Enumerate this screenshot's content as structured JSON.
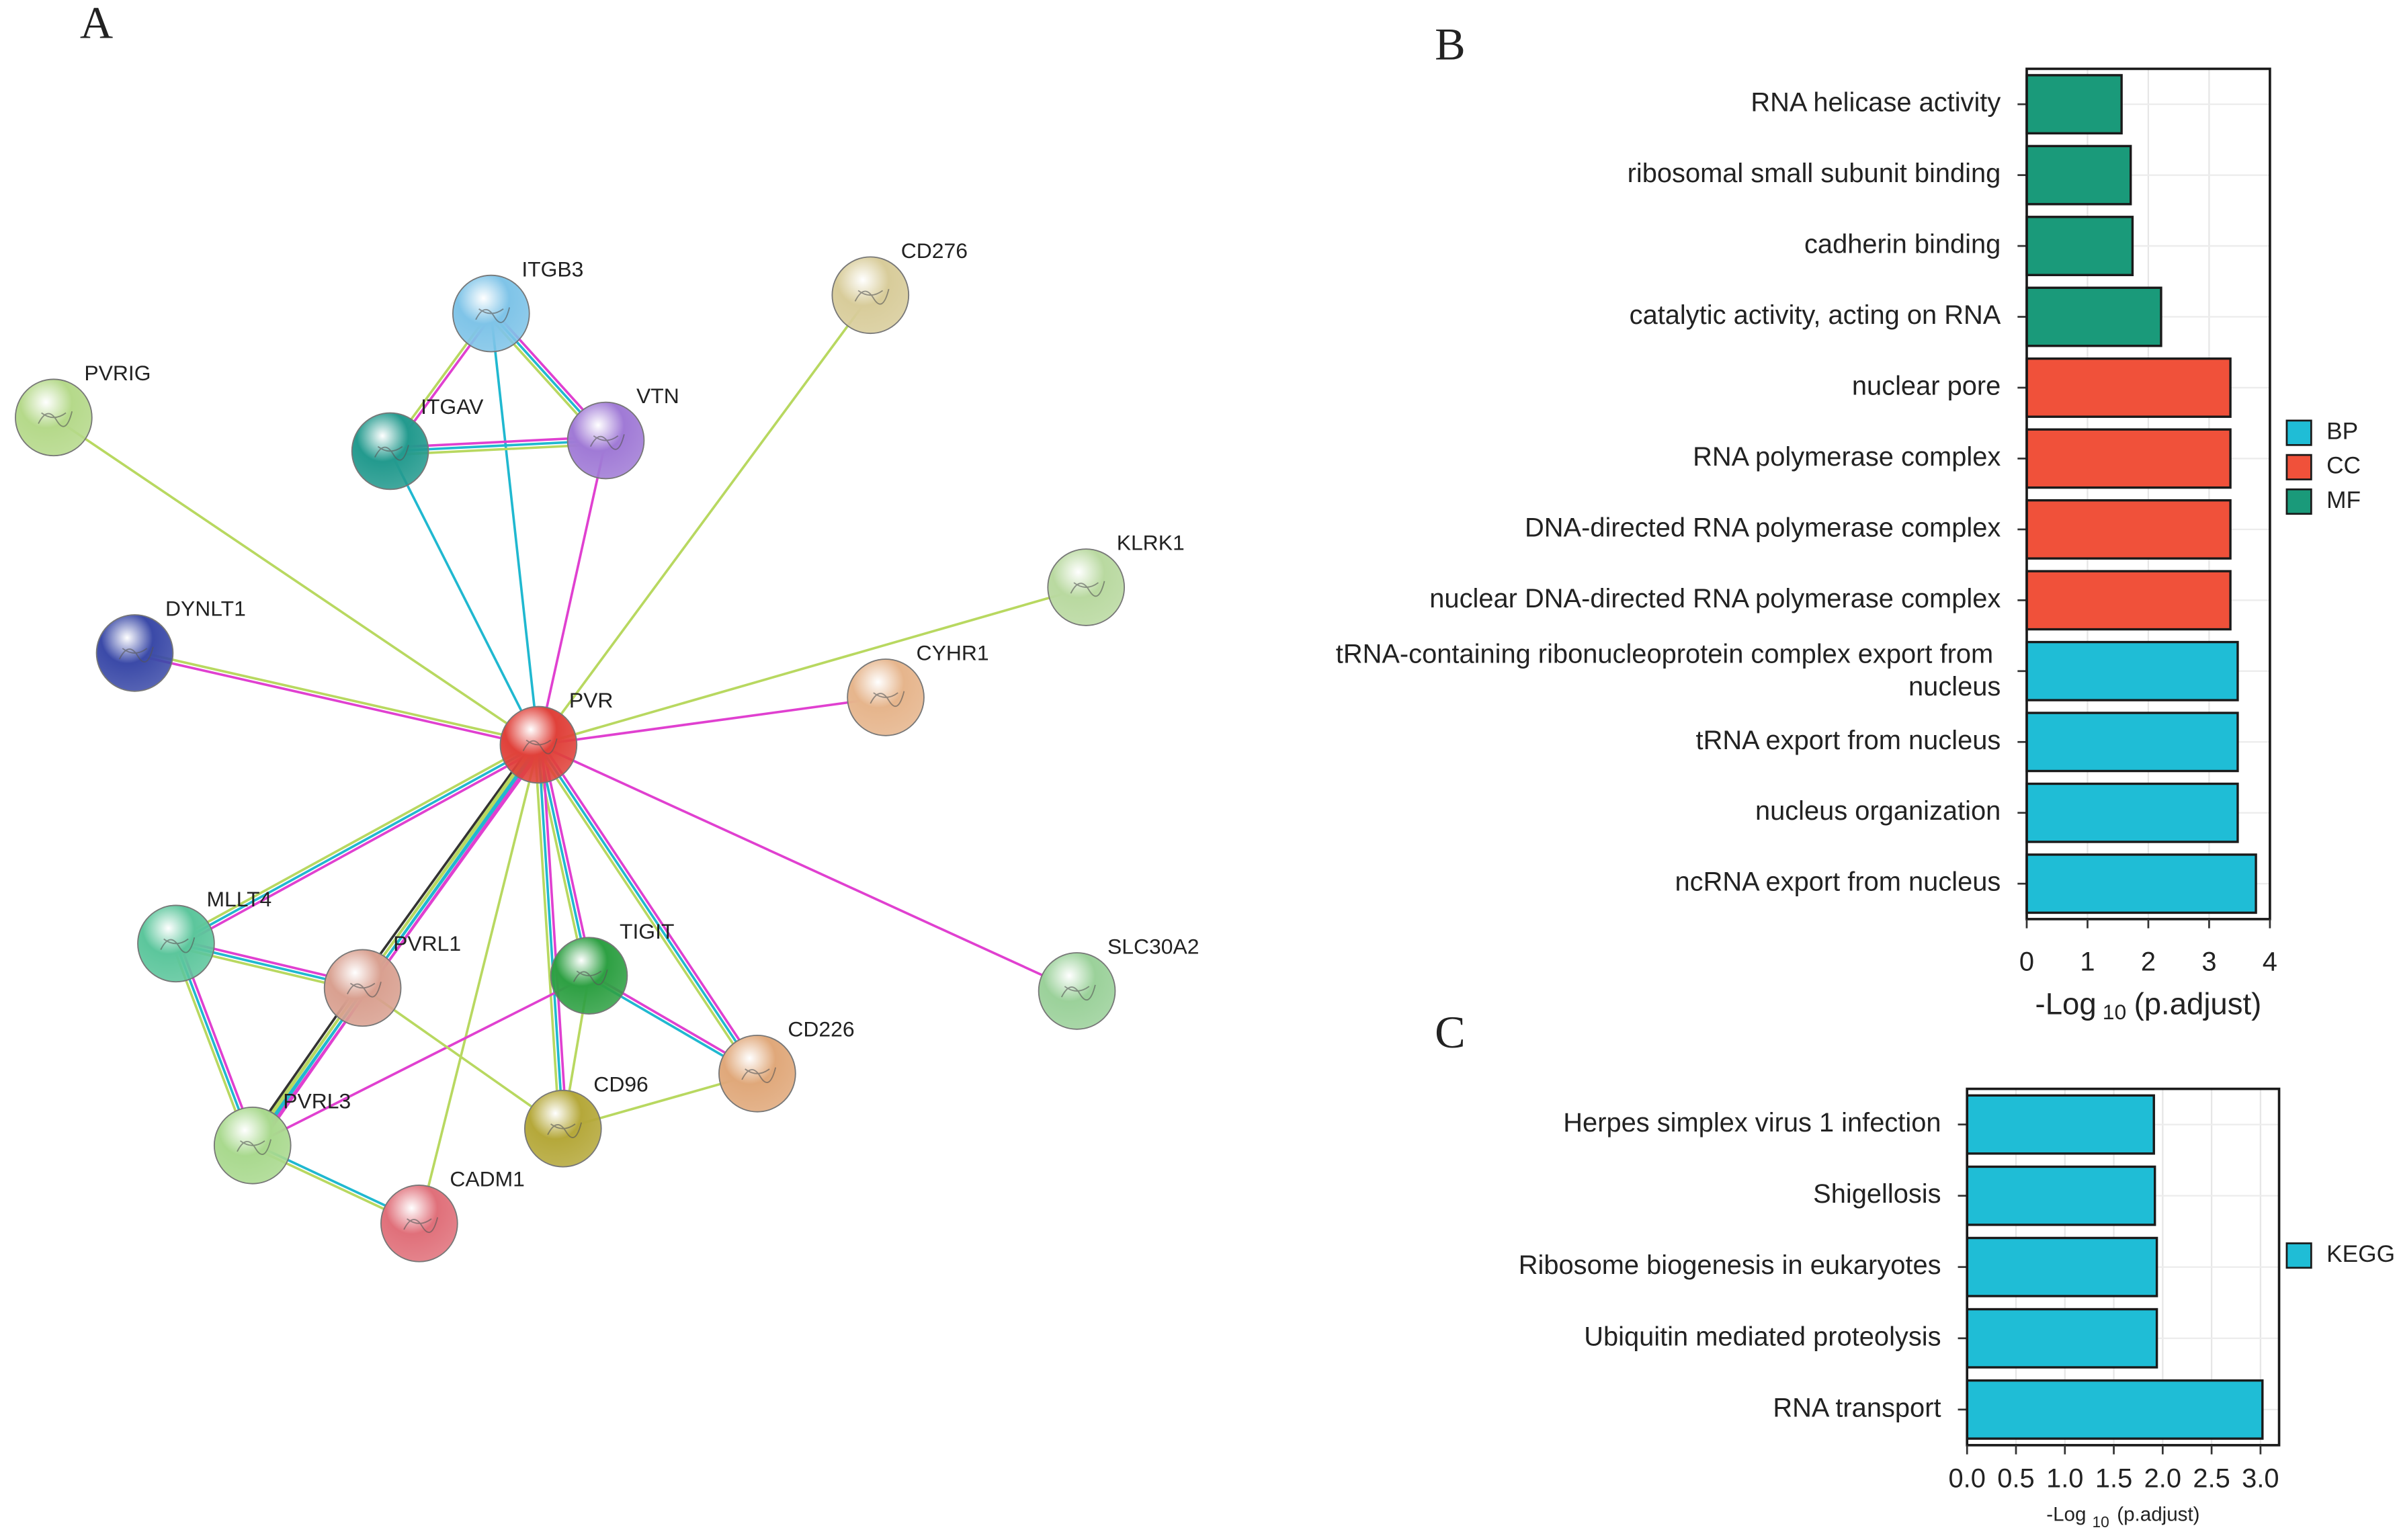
{
  "chart_data": [
    {
      "type": "network",
      "panel": "A",
      "nodes": [
        {
          "label": "PVR",
          "color": "#e0413a"
        },
        {
          "label": "ITGB3",
          "color": "#7fc4e8"
        },
        {
          "label": "ITGAV",
          "color": "#239a8e"
        },
        {
          "label": "VTN",
          "color": "#a07ad6"
        },
        {
          "label": "CD276",
          "color": "#d8cc9a"
        },
        {
          "label": "PVRIG",
          "color": "#b5d98a"
        },
        {
          "label": "DYNLT1",
          "color": "#3b4aa8"
        },
        {
          "label": "KLRK1",
          "color": "#b9d9a0"
        },
        {
          "label": "CYHR1",
          "color": "#e6b58c"
        },
        {
          "label": "SLC30A2",
          "color": "#9bd19a"
        },
        {
          "label": "MLLT4",
          "color": "#5cc69c"
        },
        {
          "label": "PVRL1",
          "color": "#d9a090"
        },
        {
          "label": "TIGIT",
          "color": "#2ea043"
        },
        {
          "label": "CD226",
          "color": "#e0a87a"
        },
        {
          "label": "PVRL3",
          "color": "#a9d98e"
        },
        {
          "label": "CD96",
          "color": "#b5a83a"
        },
        {
          "label": "CADM1",
          "color": "#e0707a"
        }
      ],
      "edges": [
        {
          "source": 0,
          "target": 1,
          "colors": [
            "#20b8d0"
          ]
        },
        {
          "source": 0,
          "target": 2,
          "colors": [
            "#20b8d0"
          ]
        },
        {
          "source": 0,
          "target": 3,
          "colors": [
            "#e040d0"
          ]
        },
        {
          "source": 0,
          "target": 4,
          "colors": [
            "#b8d860"
          ]
        },
        {
          "source": 0,
          "target": 5,
          "colors": [
            "#b8d860"
          ]
        },
        {
          "source": 0,
          "target": 6,
          "colors": [
            "#e040d0",
            "#b8d860"
          ]
        },
        {
          "source": 0,
          "target": 7,
          "colors": [
            "#b8d860"
          ]
        },
        {
          "source": 0,
          "target": 8,
          "colors": [
            "#e040d0"
          ]
        },
        {
          "source": 0,
          "target": 9,
          "colors": [
            "#e040d0"
          ]
        },
        {
          "source": 0,
          "target": 10,
          "colors": [
            "#e040d0",
            "#20b8d0",
            "#b8d860"
          ]
        },
        {
          "source": 0,
          "target": 11,
          "colors": [
            "#e040d0",
            "#20b8d0",
            "#b8d860",
            "#333333"
          ]
        },
        {
          "source": 0,
          "target": 12,
          "colors": [
            "#e040d0",
            "#20b8d0",
            "#b8d860"
          ]
        },
        {
          "source": 0,
          "target": 13,
          "colors": [
            "#e040d0",
            "#20b8d0",
            "#b8d860"
          ]
        },
        {
          "source": 0,
          "target": 14,
          "colors": [
            "#e040d0",
            "#20b8d0",
            "#b8d860"
          ]
        },
        {
          "source": 0,
          "target": 15,
          "colors": [
            "#e040d0",
            "#20b8d0",
            "#b8d860"
          ]
        },
        {
          "source": 0,
          "target": 16,
          "colors": [
            "#b8d860"
          ]
        },
        {
          "source": 1,
          "target": 2,
          "colors": [
            "#e040d0",
            "#b8d860"
          ]
        },
        {
          "source": 1,
          "target": 3,
          "colors": [
            "#e040d0",
            "#20b8d0",
            "#b8d860"
          ]
        },
        {
          "source": 2,
          "target": 3,
          "colors": [
            "#e040d0",
            "#20b8d0",
            "#b8d860"
          ]
        },
        {
          "source": 10,
          "target": 11,
          "colors": [
            "#e040d0",
            "#20b8d0",
            "#b8d860"
          ]
        },
        {
          "source": 10,
          "target": 14,
          "colors": [
            "#e040d0",
            "#20b8d0",
            "#b8d860"
          ]
        },
        {
          "source": 11,
          "target": 14,
          "colors": [
            "#e040d0",
            "#20b8d0",
            "#b8d860",
            "#333333"
          ]
        },
        {
          "source": 14,
          "target": 16,
          "colors": [
            "#20b8d0",
            "#b8d860"
          ]
        },
        {
          "source": 14,
          "target": 12,
          "colors": [
            "#e040d0"
          ]
        },
        {
          "source": 11,
          "target": 15,
          "colors": [
            "#b8d860"
          ]
        },
        {
          "source": 12,
          "target": 13,
          "colors": [
            "#e040d0",
            "#20b8d0"
          ]
        },
        {
          "source": 12,
          "target": 15,
          "colors": [
            "#b8d860"
          ]
        },
        {
          "source": 15,
          "target": 13,
          "colors": [
            "#b8d860"
          ]
        }
      ]
    },
    {
      "type": "barh",
      "panel": "B",
      "categories": [
        "RNA helicase activity",
        "ribosomal small subunit binding",
        "cadherin binding",
        "catalytic activity, acting on RNA",
        "nuclear pore",
        "RNA polymerase complex",
        "DNA-directed RNA polymerase complex",
        "nuclear DNA-directed RNA polymerase complex",
        "tRNA-containing ribonucleoprotein complex export from nucleus",
        "tRNA export from nucleus",
        "nucleus organization",
        "ncRNA export from nucleus"
      ],
      "series": [
        {
          "name": "BP",
          "color": "#1fbdd6",
          "values": [
            null,
            null,
            null,
            null,
            null,
            null,
            null,
            null,
            3.47,
            3.47,
            3.47,
            3.77
          ]
        },
        {
          "name": "CC",
          "color": "#f0513a",
          "values": [
            null,
            null,
            null,
            null,
            3.35,
            3.35,
            3.35,
            3.35,
            null,
            null,
            null,
            null
          ]
        },
        {
          "name": "MF",
          "color": "#1a9a7a",
          "values": [
            1.56,
            1.71,
            1.74,
            2.21,
            null,
            null,
            null,
            null,
            null,
            null,
            null,
            null
          ]
        }
      ],
      "xlim": [
        0,
        4
      ],
      "xticks": [
        0,
        1,
        2,
        3,
        4
      ],
      "xlabel": [
        "-Log",
        "10",
        "(p.adjust)"
      ],
      "grid": true
    },
    {
      "type": "barh",
      "panel": "C",
      "categories": [
        "Herpes simplex virus 1 infection",
        "Shigellosis",
        "Ribosome biogenesis in eukaryotes",
        "Ubiquitin mediated proteolysis",
        "RNA transport"
      ],
      "series": [
        {
          "name": "KEGG",
          "color": "#1fbdd6",
          "values": [
            1.91,
            1.92,
            1.94,
            1.94,
            3.02
          ]
        }
      ],
      "xlim": [
        0,
        3.19
      ],
      "xticks": [
        {
          "value": 0,
          "label": "0.0"
        },
        0.5,
        {
          "value": 1,
          "label": "1.0"
        },
        1.5,
        {
          "value": 2,
          "label": "2.0"
        },
        2.5,
        {
          "value": 3,
          "label": "3.0"
        }
      ],
      "xlabel": [
        "-Log",
        "10",
        "(p.adjust)"
      ],
      "grid": true
    }
  ]
}
